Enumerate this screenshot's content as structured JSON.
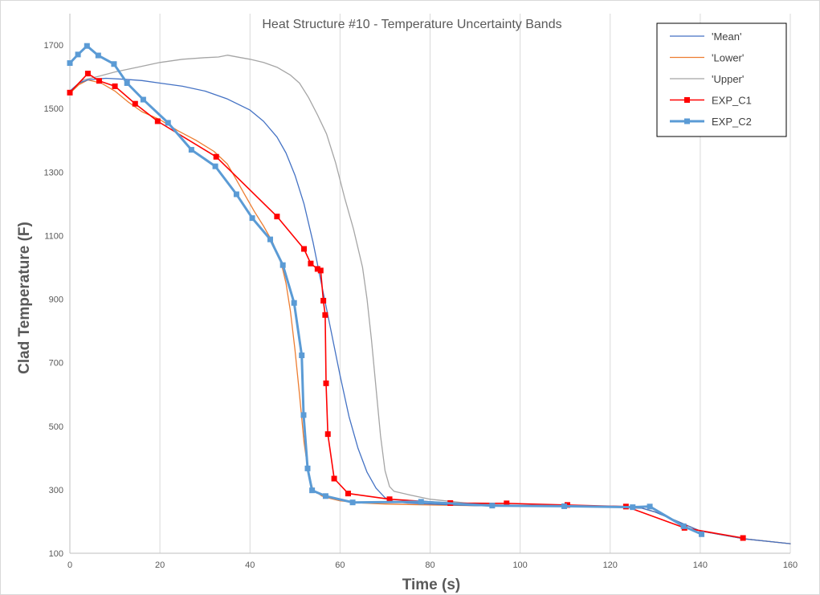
{
  "chart_data": {
    "type": "line",
    "title": "Heat Structure #10 - Temperature Uncertainty Bands",
    "xlabel": "Time (s)",
    "ylabel": "Clad Temperature  (F)",
    "xlim": [
      0,
      160
    ],
    "ylim": [
      100,
      1750
    ],
    "xticks": [
      "0",
      "20",
      "40",
      "60",
      "80",
      "100",
      "120",
      "140",
      "160"
    ],
    "yticks": [
      "100",
      "300",
      "500",
      "700",
      "900",
      "1100",
      "1300",
      "1500",
      "1700"
    ],
    "grid": "vertical",
    "legend_position": "top-right",
    "series": [
      {
        "name": "'Mean'",
        "color": "#4472c4",
        "marker": "none",
        "x": [
          0,
          2,
          4,
          8,
          12,
          16,
          20,
          25,
          30,
          35,
          40,
          43,
          46,
          48,
          50,
          52,
          54,
          56,
          58,
          60,
          62,
          64,
          66,
          68,
          70,
          72,
          75,
          80,
          90,
          100,
          110,
          120,
          127,
          130,
          135,
          140,
          150,
          160
        ],
        "y": [
          1555,
          1580,
          1590,
          1595,
          1592,
          1588,
          1580,
          1570,
          1555,
          1530,
          1495,
          1460,
          1410,
          1360,
          1290,
          1200,
          1080,
          940,
          800,
          660,
          530,
          430,
          355,
          305,
          275,
          262,
          258,
          255,
          250,
          248,
          247,
          246,
          242,
          230,
          200,
          170,
          145,
          130
        ]
      },
      {
        "name": "'Lower'",
        "color": "#ed7d31",
        "marker": "none",
        "x": [
          0,
          2,
          4,
          7,
          10,
          13,
          16,
          20,
          24,
          28,
          32,
          35,
          37,
          39,
          41,
          43,
          45,
          47,
          48,
          49,
          50,
          51,
          52,
          53,
          54,
          56,
          58,
          60,
          65,
          70,
          80,
          90,
          100,
          110,
          120,
          127,
          130,
          135,
          140,
          150,
          160
        ],
        "y": [
          1548,
          1575,
          1590,
          1580,
          1555,
          1520,
          1490,
          1465,
          1430,
          1400,
          1365,
          1325,
          1275,
          1225,
          1175,
          1130,
          1080,
          1010,
          950,
          860,
          740,
          600,
          450,
          350,
          300,
          280,
          272,
          265,
          258,
          255,
          252,
          250,
          248,
          247,
          246,
          242,
          230,
          200,
          170,
          145,
          130
        ]
      },
      {
        "name": "'Upper'",
        "color": "#a5a5a5",
        "marker": "none",
        "x": [
          0,
          3,
          6,
          10,
          15,
          20,
          25,
          30,
          33,
          35,
          38,
          40,
          43,
          46,
          49,
          51,
          53,
          55,
          57,
          59,
          61,
          63,
          65,
          66,
          67,
          68,
          69,
          70,
          71,
          72,
          75,
          80,
          90,
          100,
          110,
          120,
          127,
          130,
          135,
          140,
          150,
          160
        ],
        "y": [
          1550,
          1590,
          1600,
          1615,
          1630,
          1645,
          1655,
          1660,
          1662,
          1668,
          1660,
          1655,
          1645,
          1630,
          1605,
          1580,
          1535,
          1480,
          1420,
          1330,
          1220,
          1120,
          1000,
          900,
          770,
          620,
          470,
          360,
          310,
          295,
          285,
          270,
          255,
          250,
          248,
          246,
          242,
          230,
          200,
          170,
          145,
          130
        ]
      },
      {
        "name": "EXP_C1",
        "color": "#ff0000",
        "marker": "square",
        "x": [
          0,
          4,
          6.5,
          10,
          14.5,
          19.5,
          32.5,
          46,
          52,
          53.5,
          55,
          55.7,
          56.3,
          56.7,
          56.9,
          57.3,
          58.7,
          61.8,
          71,
          84.5,
          97,
          110.5,
          123.5,
          136.5,
          149.5
        ],
        "y": [
          1550,
          1610,
          1587,
          1570,
          1515,
          1460,
          1348,
          1160,
          1058,
          1012,
          995,
          990,
          895,
          850,
          635,
          475,
          335,
          288,
          270,
          258,
          257,
          252,
          247,
          180,
          148
        ]
      },
      {
        "name": "EXP_C2",
        "color": "#5b9bd5",
        "marker": "square",
        "x": [
          0,
          1.8,
          3.8,
          6.3,
          9.8,
          12.7,
          16.3,
          21.8,
          27,
          32.3,
          37,
          40.5,
          44.5,
          47.3,
          49.8,
          51.5,
          51.9,
          52.8,
          53.8,
          56.8,
          62.8,
          78,
          93.8,
          109.8,
          125,
          128.8,
          136.3,
          140.3
        ],
        "y": [
          1643,
          1670,
          1697,
          1667,
          1640,
          1580,
          1528,
          1455,
          1370,
          1318,
          1230,
          1155,
          1088,
          1007,
          888,
          723,
          535,
          367,
          298,
          280,
          260,
          262,
          250,
          248,
          245,
          247,
          185,
          160
        ]
      }
    ]
  }
}
